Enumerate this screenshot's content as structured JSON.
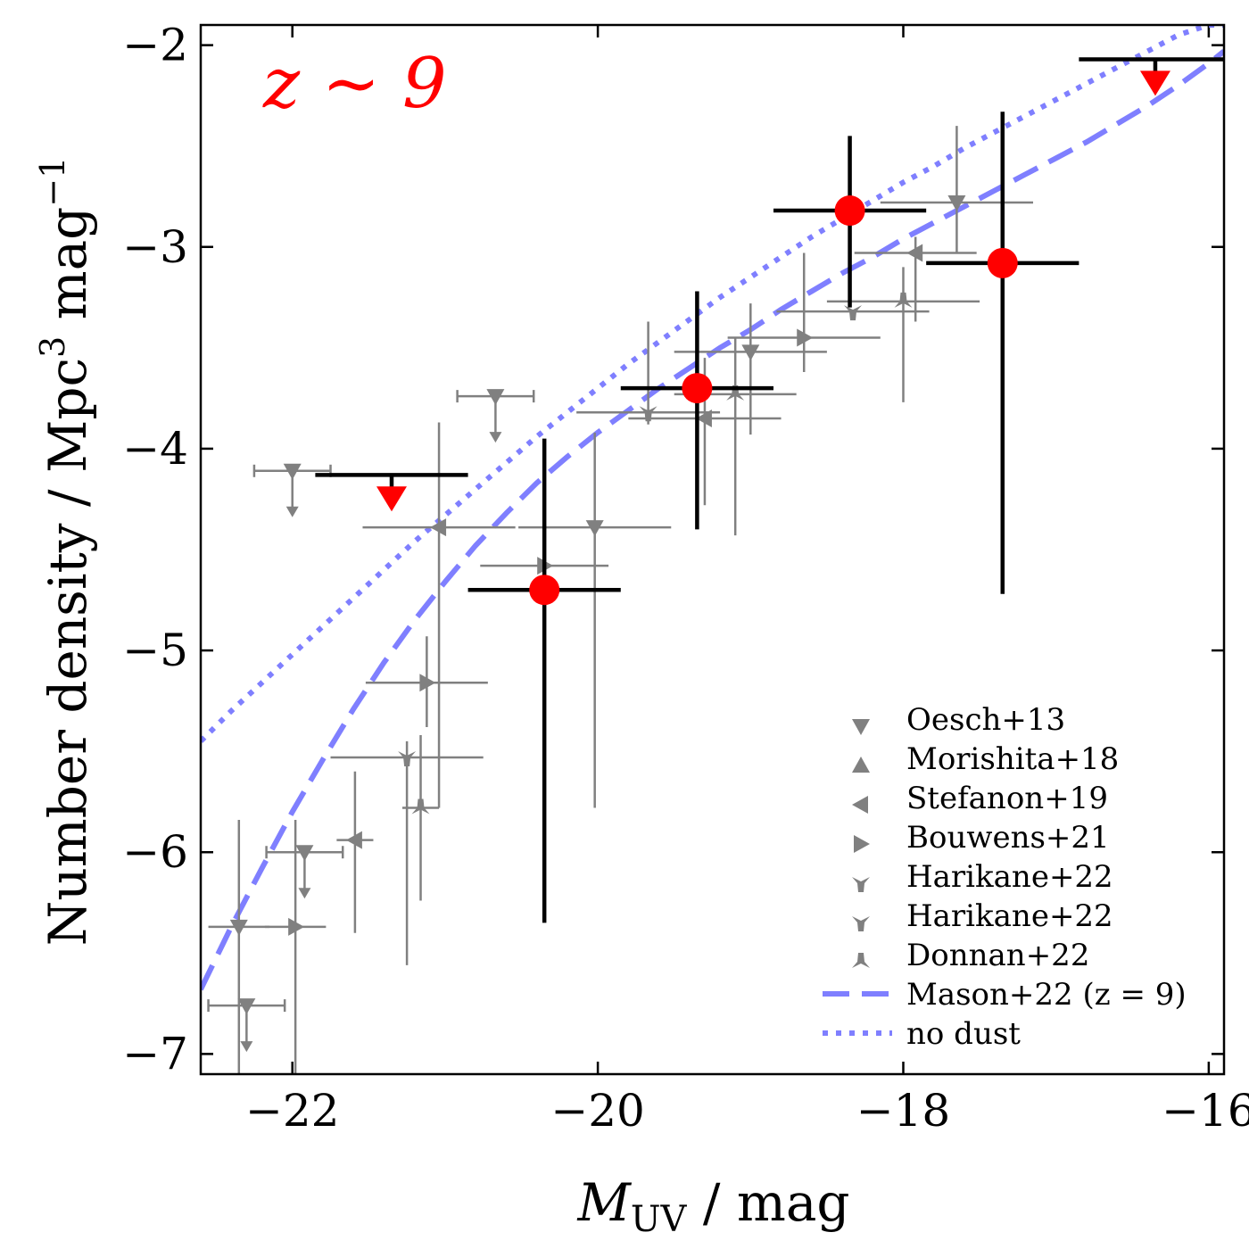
{
  "chart_data": {
    "type": "scatter",
    "annotation": {
      "text": "z ∼ 9",
      "color": "#ff0000"
    },
    "xlabel": {
      "main": "M",
      "sub": "UV",
      "rest": " / mag"
    },
    "ylabel": {
      "text": "Number density / Mpc",
      "sup": "3",
      "mid": " mag",
      "sup2": "−1"
    },
    "xlim": [
      -22.6,
      -15.9
    ],
    "ylim": [
      -7.1,
      -1.9
    ],
    "xticks": [
      -22,
      -20,
      -18,
      -16
    ],
    "xtick_labels": [
      "−22",
      "−20",
      "−18",
      "−16"
    ],
    "yticks": [
      -7,
      -6,
      -5,
      -4,
      -3,
      -2
    ],
    "ytick_labels": [
      "−7",
      "−6",
      "−5",
      "−4",
      "−3",
      "−2"
    ],
    "this_work": {
      "color": "#ff0000",
      "points": [
        {
          "x": -20.35,
          "y": -4.7,
          "xerr": 0.5,
          "ylo": -6.35,
          "yhi": -3.95
        },
        {
          "x": -19.35,
          "y": -3.7,
          "xerr": 0.5,
          "ylo": -4.4,
          "yhi": -3.22
        },
        {
          "x": -18.35,
          "y": -2.82,
          "xerr": 0.5,
          "ylo": -3.3,
          "yhi": -2.45
        },
        {
          "x": -17.35,
          "y": -3.08,
          "xerr": 0.5,
          "ylo": -4.72,
          "yhi": -2.33
        }
      ],
      "upper_limits": [
        {
          "x": -21.35,
          "y": -4.13,
          "xerr": 0.5,
          "mx": -21.35,
          "my": -4.24
        },
        {
          "x": -16.35,
          "y": -2.07,
          "xerr": 0.5,
          "mx": -16.35,
          "my": -2.18
        }
      ]
    },
    "literature": {
      "color": "#808080",
      "points": [
        {
          "x": -20.67,
          "y": -3.74,
          "xerr": 0.25,
          "ylo": -3.74,
          "yhi": -3.74,
          "limit": true
        },
        {
          "x": -22.0,
          "y": -4.11,
          "xerr": 0.25,
          "ylo": -4.11,
          "yhi": -4.11,
          "limit": true
        },
        {
          "x": -21.92,
          "y": -6.0,
          "xerr": 0.25,
          "ylo": -6.0,
          "yhi": -6.0,
          "limit": true
        },
        {
          "x": -22.3,
          "y": -6.76,
          "xerr": 0.25,
          "ylo": -6.76,
          "yhi": -6.76,
          "limit": true
        },
        {
          "x": -21.04,
          "y": -4.39,
          "xerr": 0.5,
          "ylo": -5.78,
          "yhi": -3.87
        },
        {
          "x": -20.02,
          "y": -4.39,
          "xerr": 0.5,
          "ylo": -5.78,
          "yhi": -3.92
        },
        {
          "x": -20.35,
          "y": -4.58,
          "xerr": 0.42,
          "ylo": -4.92,
          "yhi": -4.25
        },
        {
          "x": -19.67,
          "y": -3.82,
          "xerr": 0.47,
          "ylo": -3.88,
          "yhi": -3.37
        },
        {
          "x": -19.1,
          "y": -3.73,
          "xerr": 0.4,
          "ylo": -4.43,
          "yhi": -3.45
        },
        {
          "x": -19.3,
          "y": -3.85,
          "xerr": 0.5,
          "ylo": -4.28,
          "yhi": -3.55
        },
        {
          "x": -19.0,
          "y": -3.52,
          "xerr": 0.5,
          "ylo": -3.93,
          "yhi": -3.28
        },
        {
          "x": -18.65,
          "y": -3.45,
          "xerr": 0.5,
          "ylo": -3.62,
          "yhi": -3.03
        },
        {
          "x": -18.33,
          "y": -3.32,
          "xerr": 0.5,
          "ylo": -3.3,
          "yhi": -3.3
        },
        {
          "x": -18.0,
          "y": -3.27,
          "xerr": 0.5,
          "ylo": -3.77,
          "yhi": -3.1
        },
        {
          "x": -17.92,
          "y": -3.03,
          "xerr": 0.4,
          "ylo": -3.37,
          "yhi": -2.95
        },
        {
          "x": -17.65,
          "y": -2.78,
          "xerr": 0.5,
          "ylo": -3.03,
          "yhi": -2.4
        },
        {
          "x": -21.12,
          "y": -5.16,
          "xerr": 0.4,
          "ylo": -5.38,
          "yhi": -4.93
        },
        {
          "x": -21.25,
          "y": -5.53,
          "xerr": 0.5,
          "ylo": -6.56,
          "yhi": -5.45
        },
        {
          "x": -21.16,
          "y": -5.78,
          "xerr": 0.12,
          "ylo": -6.24,
          "yhi": -5.42
        },
        {
          "x": -21.59,
          "y": -5.94,
          "xerr": 0.12,
          "ylo": -6.4,
          "yhi": -5.6
        },
        {
          "x": -22.35,
          "y": -6.37,
          "xerr": 0.2,
          "ylo": -7.1,
          "yhi": -5.84
        },
        {
          "x": -21.98,
          "y": -6.37,
          "xerr": 0.2,
          "ylo": -7.1,
          "yhi": -5.84
        }
      ]
    },
    "series": [
      {
        "name": "Mason+22 (z = 9)",
        "style": "dashed",
        "color": "#7f7fff",
        "x": [
          -22.6,
          -22.4,
          -22.2,
          -22.0,
          -21.8,
          -21.6,
          -21.4,
          -21.2,
          -21.0,
          -20.8,
          -20.6,
          -20.4,
          -20.2,
          -20.0,
          -19.8,
          -19.6,
          -19.4,
          -19.2,
          -19.0,
          -18.8,
          -18.6,
          -18.4,
          -18.2,
          -18.0,
          -17.8,
          -17.6,
          -17.4,
          -17.2,
          -17.0,
          -16.8,
          -16.6,
          -16.4,
          -16.2,
          -16.0,
          -15.9
        ],
        "y": [
          -6.68,
          -6.37,
          -6.08,
          -5.8,
          -5.54,
          -5.29,
          -5.06,
          -4.85,
          -4.66,
          -4.48,
          -4.32,
          -4.17,
          -4.04,
          -3.92,
          -3.81,
          -3.7,
          -3.6,
          -3.5,
          -3.41,
          -3.31,
          -3.22,
          -3.13,
          -3.05,
          -2.96,
          -2.88,
          -2.8,
          -2.72,
          -2.64,
          -2.56,
          -2.48,
          -2.39,
          -2.3,
          -2.2,
          -2.09,
          -2.03
        ]
      },
      {
        "name": "no dust",
        "style": "dotted",
        "color": "#7f7fff",
        "x": [
          -22.6,
          -22.4,
          -22.2,
          -22.0,
          -21.8,
          -21.6,
          -21.4,
          -21.2,
          -21.0,
          -20.8,
          -20.6,
          -20.4,
          -20.2,
          -20.0,
          -19.8,
          -19.6,
          -19.4,
          -19.2,
          -19.0,
          -18.8,
          -18.6,
          -18.4,
          -18.2,
          -18.0,
          -17.8,
          -17.6,
          -17.4,
          -17.2,
          -17.0,
          -16.8,
          -16.6,
          -16.4,
          -16.2,
          -16.0,
          -15.9
        ],
        "y": [
          -5.45,
          -5.3,
          -5.16,
          -5.02,
          -4.88,
          -4.74,
          -4.6,
          -4.46,
          -4.33,
          -4.2,
          -4.07,
          -3.94,
          -3.82,
          -3.7,
          -3.58,
          -3.47,
          -3.36,
          -3.25,
          -3.15,
          -3.05,
          -2.95,
          -2.86,
          -2.77,
          -2.68,
          -2.6,
          -2.51,
          -2.43,
          -2.35,
          -2.27,
          -2.19,
          -2.11,
          -2.03,
          -1.95,
          -1.9,
          -1.9
        ]
      }
    ],
    "legend": {
      "position": "lower-right",
      "entries": [
        {
          "label": "Oesch+13",
          "marker": "tri-down"
        },
        {
          "label": "Morishita+18",
          "marker": "tri-up"
        },
        {
          "label": "Stefanon+19",
          "marker": "tri-left"
        },
        {
          "label": "Bouwens+21",
          "marker": "tri-right"
        },
        {
          "label": "Harikane+22",
          "marker": "star-down"
        },
        {
          "label": "Harikane+22",
          "marker": "star-down"
        },
        {
          "label": "Donnan+22",
          "marker": "star-up"
        },
        {
          "label": "Mason+22 (z = 9)",
          "marker": "dashed"
        },
        {
          "label": "no dust",
          "marker": "dotted"
        }
      ]
    }
  }
}
